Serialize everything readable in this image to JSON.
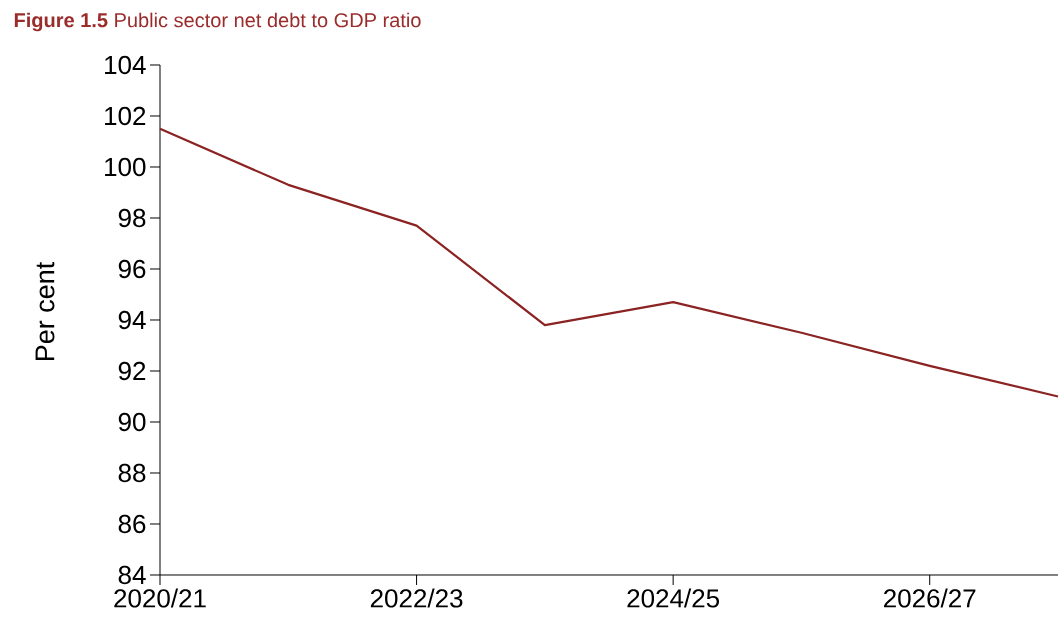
{
  "chart_data": {
    "type": "line",
    "title": "**Figure 1.5**    Public sector net debt to GDP ratio",
    "ylabel": "Per cent",
    "categories": [
      "2020/21",
      null,
      "2022/23",
      null,
      "2024/25",
      null,
      "2026/27",
      null
    ],
    "series": [
      {
        "color": "#8b2323",
        "values": [
          101.5,
          99.3,
          97.7,
          93.8,
          94.7,
          93.5,
          92.2,
          91.0
        ]
      }
    ],
    "ylim": [
      84,
      104
    ],
    "yticks": [
      84,
      86,
      88,
      90,
      92,
      94,
      96,
      98,
      100,
      102,
      104
    ],
    "grid": false,
    "marker": "none",
    "line_style": "solid"
  }
}
